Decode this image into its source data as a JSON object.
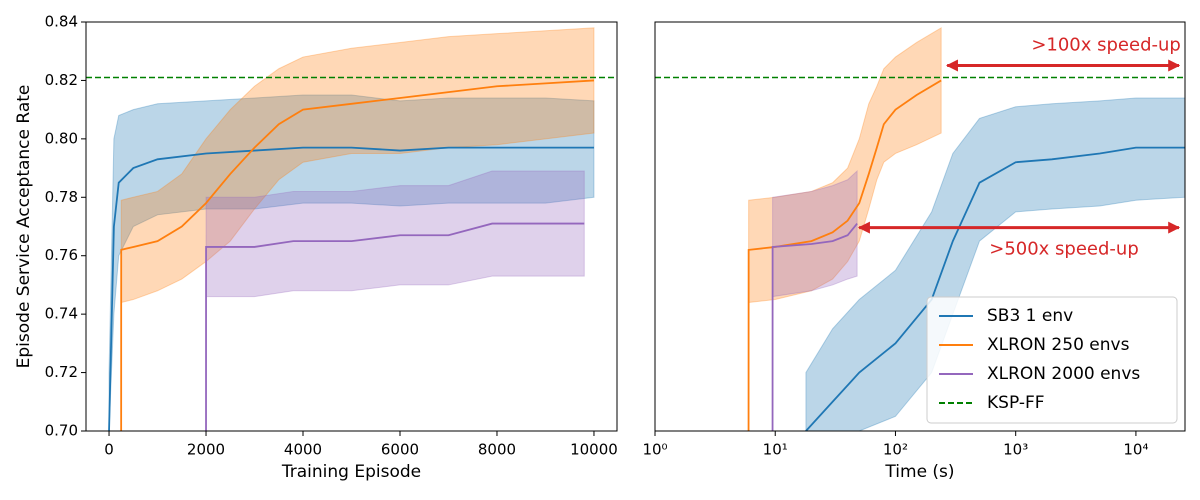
{
  "chart_data": [
    {
      "type": "line",
      "x_label": "Training Episode",
      "y_label": "Episode Service Acceptance Rate",
      "xlim": [
        -475,
        10475
      ],
      "xticks": [
        0,
        2000,
        4000,
        6000,
        8000,
        10000
      ],
      "ylim": [
        0.7,
        0.84
      ],
      "yticks": [
        {
          "value": 0.7,
          "label": "0.70"
        },
        0.72,
        0.74,
        0.76,
        0.78,
        {
          "value": 0.8,
          "label": "0.80"
        },
        0.82,
        0.84
      ],
      "reference": {
        "value": 0.821,
        "color": "#008000"
      },
      "series": [
        {
          "color": "#1f77b4",
          "x": [
            0,
            100,
            200,
            500,
            1000,
            2000,
            3000,
            4000,
            5000,
            6000,
            7000,
            8000,
            9000,
            10000
          ],
          "values": [
            0.7,
            0.77,
            0.785,
            0.79,
            0.793,
            0.795,
            0.796,
            0.797,
            0.797,
            0.796,
            0.797,
            0.797,
            0.797,
            0.797
          ],
          "upper": [
            0.72,
            0.8,
            0.808,
            0.81,
            0.812,
            0.813,
            0.814,
            0.815,
            0.815,
            0.813,
            0.814,
            0.814,
            0.814,
            0.813
          ],
          "lower": [
            0.7,
            0.74,
            0.76,
            0.77,
            0.774,
            0.776,
            0.776,
            0.778,
            0.778,
            0.777,
            0.778,
            0.778,
            0.778,
            0.78
          ]
        },
        {
          "color": "#ff7f0e",
          "x": [
            250,
            251,
            500,
            1000,
            1500,
            2000,
            2500,
            3000,
            3500,
            4000,
            5000,
            6000,
            7000,
            8000,
            9000,
            10000
          ],
          "values": [
            0.7,
            0.762,
            0.763,
            0.765,
            0.77,
            0.778,
            0.788,
            0.797,
            0.805,
            0.81,
            0.812,
            0.814,
            0.816,
            0.818,
            0.819,
            0.82
          ],
          "upper": [
            0.7,
            0.779,
            0.78,
            0.782,
            0.788,
            0.8,
            0.81,
            0.818,
            0.824,
            0.828,
            0.831,
            0.833,
            0.835,
            0.836,
            0.837,
            0.838
          ],
          "lower": [
            0.7,
            0.744,
            0.745,
            0.748,
            0.752,
            0.758,
            0.765,
            0.776,
            0.786,
            0.792,
            0.795,
            0.795,
            0.797,
            0.798,
            0.8,
            0.802
          ]
        },
        {
          "color": "#9467bd",
          "x": [
            2000,
            2001,
            3000,
            3800,
            5000,
            6000,
            7000,
            7900,
            9000,
            9800
          ],
          "values": [
            0.7,
            0.763,
            0.763,
            0.765,
            0.765,
            0.767,
            0.767,
            0.771,
            0.771,
            0.771
          ],
          "upper": [
            0.7,
            0.78,
            0.78,
            0.782,
            0.782,
            0.784,
            0.784,
            0.789,
            0.789,
            0.789
          ],
          "lower": [
            0.7,
            0.746,
            0.746,
            0.748,
            0.748,
            0.75,
            0.75,
            0.753,
            0.753,
            0.753
          ]
        }
      ]
    },
    {
      "type": "line",
      "x_label": "Time (s)",
      "log_x": true,
      "xlim": [
        1,
        25600
      ],
      "xticks": [
        {
          "value": 1,
          "label": "10⁰"
        },
        {
          "value": 10,
          "label": "10¹"
        },
        {
          "value": 100,
          "label": "10²"
        },
        {
          "value": 1000,
          "label": "10³"
        },
        {
          "value": 10000,
          "label": "10⁴"
        }
      ],
      "ylim": [
        0.7,
        0.84
      ],
      "legend": "lower right",
      "reference": {
        "name": "KSP-FF",
        "value": 0.821,
        "color": "#008000"
      },
      "annotations": [
        ">100x speed-up",
        ">500x speed-up"
      ],
      "annotation_color": "#d62728",
      "series": [
        {
          "name": "SB3 1 env",
          "color": "#1f77b4",
          "x": [
            18,
            30,
            50,
            100,
            200,
            300,
            500,
            1000,
            2000,
            5000,
            10000,
            25600
          ],
          "values": [
            0.7,
            0.71,
            0.72,
            0.73,
            0.745,
            0.765,
            0.785,
            0.792,
            0.793,
            0.795,
            0.797,
            0.797
          ],
          "upper": [
            0.72,
            0.735,
            0.745,
            0.755,
            0.775,
            0.795,
            0.807,
            0.811,
            0.812,
            0.813,
            0.814,
            0.814
          ],
          "lower": [
            0.7,
            0.7,
            0.7,
            0.705,
            0.72,
            0.74,
            0.765,
            0.775,
            0.776,
            0.777,
            0.779,
            0.78
          ]
        },
        {
          "name": "XLRON 250 envs",
          "color": "#ff7f0e",
          "x": [
            6,
            6.01,
            10,
            20,
            30,
            40,
            50,
            60,
            70,
            80,
            100,
            150,
            240
          ],
          "values": [
            0.7,
            0.762,
            0.763,
            0.765,
            0.768,
            0.772,
            0.778,
            0.788,
            0.797,
            0.805,
            0.81,
            0.815,
            0.82
          ],
          "upper": [
            0.7,
            0.779,
            0.78,
            0.782,
            0.785,
            0.79,
            0.8,
            0.812,
            0.818,
            0.824,
            0.828,
            0.833,
            0.838
          ],
          "lower": [
            0.7,
            0.744,
            0.745,
            0.748,
            0.752,
            0.758,
            0.765,
            0.776,
            0.786,
            0.792,
            0.795,
            0.798,
            0.802
          ]
        },
        {
          "name": "XLRON 2000 envs",
          "color": "#9467bd",
          "x": [
            9.5,
            9.51,
            20,
            30,
            40,
            48
          ],
          "values": [
            0.7,
            0.763,
            0.764,
            0.765,
            0.767,
            0.771
          ],
          "upper": [
            0.7,
            0.78,
            0.782,
            0.784,
            0.786,
            0.789
          ],
          "lower": [
            0.7,
            0.746,
            0.748,
            0.75,
            0.752,
            0.753
          ]
        }
      ]
    }
  ]
}
